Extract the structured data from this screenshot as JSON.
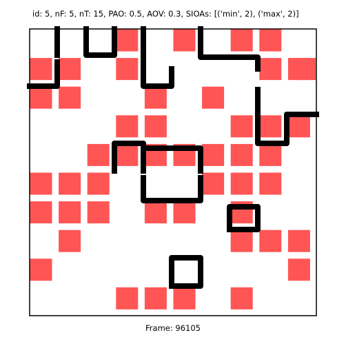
{
  "header": {
    "info": "id: 5, nF: 5, nT: 15, PAO: 0.5, AOV: 0.3, SIOAs: [('min', 2), ('max', 2)]"
  },
  "footer": {
    "frame": "Frame: 96105"
  },
  "colors": {
    "background": "#ffffff",
    "tile": "#ff5555",
    "wall": "#000000",
    "frame_border": "#000000"
  },
  "grid": {
    "rows": 10,
    "cols": 10,
    "tiles": [
      [
        1,
        3
      ],
      [
        1,
        5
      ],
      [
        1,
        7
      ],
      [
        1,
        8
      ],
      [
        2,
        0
      ],
      [
        2,
        1
      ],
      [
        2,
        3
      ],
      [
        2,
        8
      ],
      [
        2,
        9
      ],
      [
        2,
        10
      ],
      [
        3,
        0
      ],
      [
        3,
        1
      ],
      [
        3,
        4
      ],
      [
        3,
        6
      ],
      [
        4,
        3
      ],
      [
        4,
        4
      ],
      [
        4,
        7
      ],
      [
        4,
        8
      ],
      [
        4,
        9
      ],
      [
        5,
        2
      ],
      [
        5,
        3
      ],
      [
        5,
        4
      ],
      [
        5,
        5
      ],
      [
        5,
        6
      ],
      [
        5,
        7
      ],
      [
        5,
        8
      ],
      [
        6,
        0
      ],
      [
        6,
        1
      ],
      [
        6,
        2
      ],
      [
        6,
        6
      ],
      [
        6,
        7
      ],
      [
        6,
        8
      ],
      [
        7,
        0
      ],
      [
        7,
        1
      ],
      [
        7,
        2
      ],
      [
        7,
        4
      ],
      [
        7,
        5
      ],
      [
        7,
        7
      ],
      [
        8,
        1
      ],
      [
        8,
        7
      ],
      [
        8,
        8
      ],
      [
        8,
        9
      ],
      [
        9,
        0
      ],
      [
        9,
        9
      ],
      [
        10,
        3
      ],
      [
        10,
        4
      ],
      [
        10,
        5
      ],
      [
        10,
        7
      ]
    ],
    "walls": [
      [
        1,
        1
      ],
      [
        2,
        1
      ],
      [
        1,
        2
      ],
      [
        2,
        2
      ],
      [
        2,
        3
      ],
      [
        1,
        3
      ],
      [
        1,
        4
      ],
      [
        2,
        4
      ],
      [
        3,
        4
      ],
      [
        3,
        5
      ],
      [
        2,
        5
      ],
      [
        1,
        6
      ],
      [
        2,
        6
      ],
      [
        2,
        7
      ],
      [
        2,
        8
      ],
      [
        3,
        8
      ],
      [
        3,
        0
      ],
      [
        3,
        1
      ],
      [
        4,
        8
      ],
      [
        5,
        8
      ],
      [
        5,
        9
      ],
      [
        4,
        9
      ],
      [
        4,
        10
      ],
      [
        5,
        3
      ],
      [
        6,
        3
      ],
      [
        6,
        4
      ],
      [
        5,
        4
      ],
      [
        5,
        5
      ],
      [
        5,
        6
      ],
      [
        6,
        6
      ],
      [
        6,
        4
      ],
      [
        7,
        4
      ],
      [
        7,
        5
      ],
      [
        7,
        6
      ],
      [
        6,
        6
      ],
      [
        7,
        7
      ],
      [
        8,
        7
      ],
      [
        8,
        8
      ],
      [
        7,
        8
      ],
      [
        9,
        5
      ],
      [
        10,
        5
      ],
      [
        10,
        6
      ],
      [
        9,
        6
      ]
    ]
  }
}
